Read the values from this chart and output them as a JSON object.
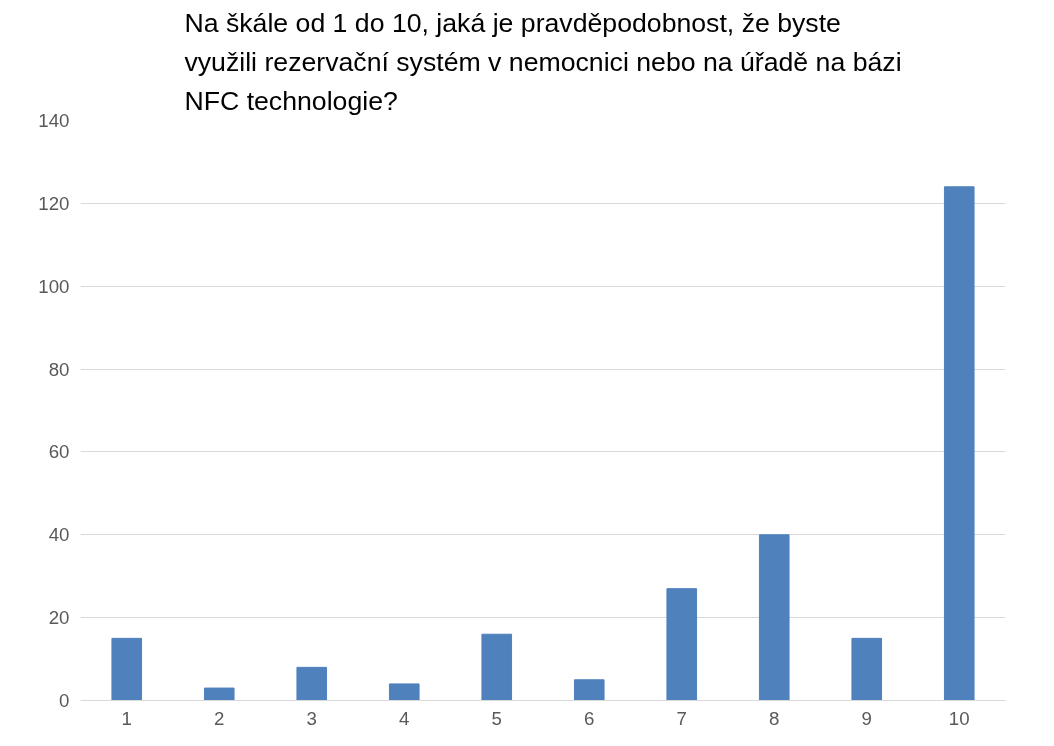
{
  "chart_data": {
    "type": "bar",
    "title": "Na škále od 1 do 10, jaká je pravděpodobnost, že byste\nvyužili rezervační systém v nemocnici nebo na úřadě na bázi\nNFC technologie?",
    "categories": [
      "1",
      "2",
      "3",
      "4",
      "5",
      "6",
      "7",
      "8",
      "9",
      "10"
    ],
    "values": [
      15,
      3,
      8,
      4,
      16,
      5,
      27,
      40,
      15,
      124
    ],
    "color": "#4f81bd",
    "ylim": [
      0,
      140
    ],
    "yticks": [
      0,
      20,
      40,
      60,
      80,
      100,
      120,
      140
    ],
    "grid": "y"
  }
}
